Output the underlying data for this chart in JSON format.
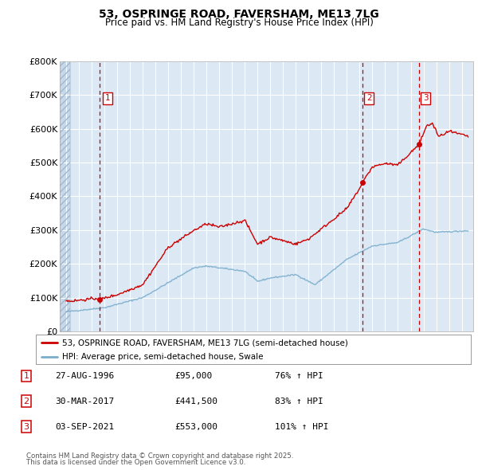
{
  "title": "53, OSPRINGE ROAD, FAVERSHAM, ME13 7LG",
  "subtitle": "Price paid vs. HM Land Registry's House Price Index (HPI)",
  "legend_line1": "53, OSPRINGE ROAD, FAVERSHAM, ME13 7LG (semi-detached house)",
  "legend_line2": "HPI: Average price, semi-detached house, Swale",
  "footer1": "Contains HM Land Registry data © Crown copyright and database right 2025.",
  "footer2": "This data is licensed under the Open Government Licence v3.0.",
  "table": [
    {
      "num": "1",
      "date": "27-AUG-1996",
      "price": "£95,000",
      "hpi": "76% ↑ HPI"
    },
    {
      "num": "2",
      "date": "30-MAR-2017",
      "price": "£441,500",
      "hpi": "83% ↑ HPI"
    },
    {
      "num": "3",
      "date": "03-SEP-2021",
      "price": "£553,000",
      "hpi": "101% ↑ HPI"
    }
  ],
  "sale_dates_decimal": [
    1996.65,
    2017.24,
    2021.67
  ],
  "sale_prices": [
    95000,
    441500,
    553000
  ],
  "price_line_color": "#cc0000",
  "hpi_line_color": "#7aadcc",
  "bg_color": "#dce9f5",
  "hatch_bg_color": "#c8d8e8",
  "ylim": [
    0,
    800000
  ],
  "yticks": [
    0,
    100000,
    200000,
    300000,
    400000,
    500000,
    600000,
    700000,
    800000
  ],
  "ytick_labels": [
    "£0",
    "£100K",
    "£200K",
    "£300K",
    "£400K",
    "£500K",
    "£600K",
    "£700K",
    "£800K"
  ],
  "xmin": 1993.5,
  "xmax": 2025.9
}
